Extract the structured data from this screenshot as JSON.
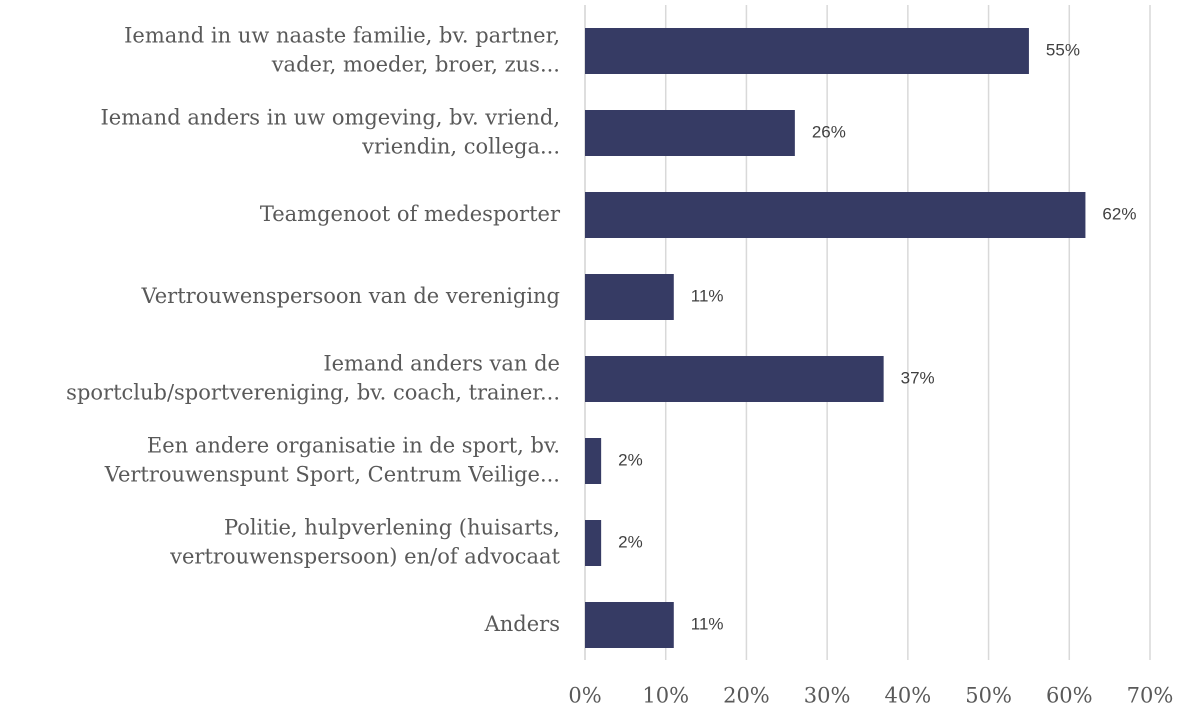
{
  "chart_data": {
    "type": "barh",
    "categories": [
      "Iemand in uw naaste familie, bv. partner,\nvader, moeder, broer, zus...",
      "Iemand anders in uw omgeving, bv. vriend,\nvriendin, collega...",
      "Teamgenoot of medesporter",
      "Vertrouwenspersoon van de vereniging",
      "Iemand anders van de\nsportclub/sportvereniging, bv. coach, trainer...",
      "Een andere organisatie in de sport, bv.\nVertrouwenspunt Sport, Centrum Veilige...",
      "Politie, hulpverlening (huisarts,\nvertrouwenspersoon) en/of advocaat",
      "Anders"
    ],
    "values": [
      55,
      26,
      62,
      11,
      37,
      2,
      2,
      11
    ],
    "value_labels": [
      "55%",
      "26%",
      "62%",
      "11%",
      "37%",
      "2%",
      "2%",
      "11%"
    ],
    "color": "#363b64",
    "xlim": [
      0,
      70
    ],
    "xticks": [
      {
        "value": 0,
        "label": "0%"
      },
      {
        "value": 10,
        "label": "10%"
      },
      {
        "value": 20,
        "label": "20%"
      },
      {
        "value": 30,
        "label": "30%"
      },
      {
        "value": 40,
        "label": "40%"
      },
      {
        "value": 50,
        "label": "50%"
      },
      {
        "value": 60,
        "label": "60%"
      },
      {
        "value": 70,
        "label": "70%"
      }
    ],
    "grid": true
  }
}
